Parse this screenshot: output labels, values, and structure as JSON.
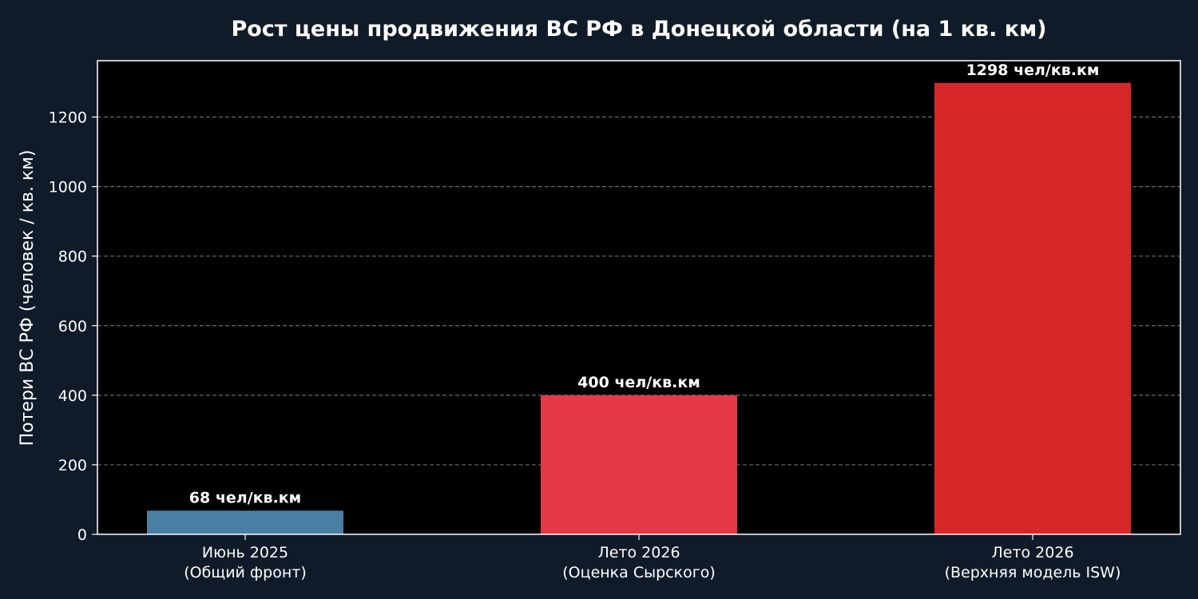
{
  "chart_data": {
    "type": "bar",
    "title": "Рост цены продвижения ВС РФ в Донецкой области (на 1 кв. км)",
    "xlabel": "",
    "ylabel": "Потери ВС РФ (человек / кв. км)",
    "ylim": [
      0,
      1362
    ],
    "yticks": [
      0,
      200,
      400,
      600,
      800,
      1000,
      1200
    ],
    "grid": "horizontal-dashed",
    "categories": [
      [
        "Июнь 2025",
        "(Общий фронт)"
      ],
      [
        "Лето 2026",
        "(Оценка Сырского)"
      ],
      [
        "Лето 2026",
        "(Верхняя модель ISW)"
      ]
    ],
    "values": [
      68,
      400,
      1298
    ],
    "data_labels": [
      "68 чел/кв.км",
      "400 чел/кв.км",
      "1298 чел/кв.км"
    ],
    "bar_colors": [
      "#4a7fa5",
      "#e63946",
      "#d62828"
    ],
    "colors": {
      "figure_background": "#0f1b29",
      "plot_background": "#000000",
      "text": "#ffffff",
      "grid": "#6b6b6b"
    }
  }
}
